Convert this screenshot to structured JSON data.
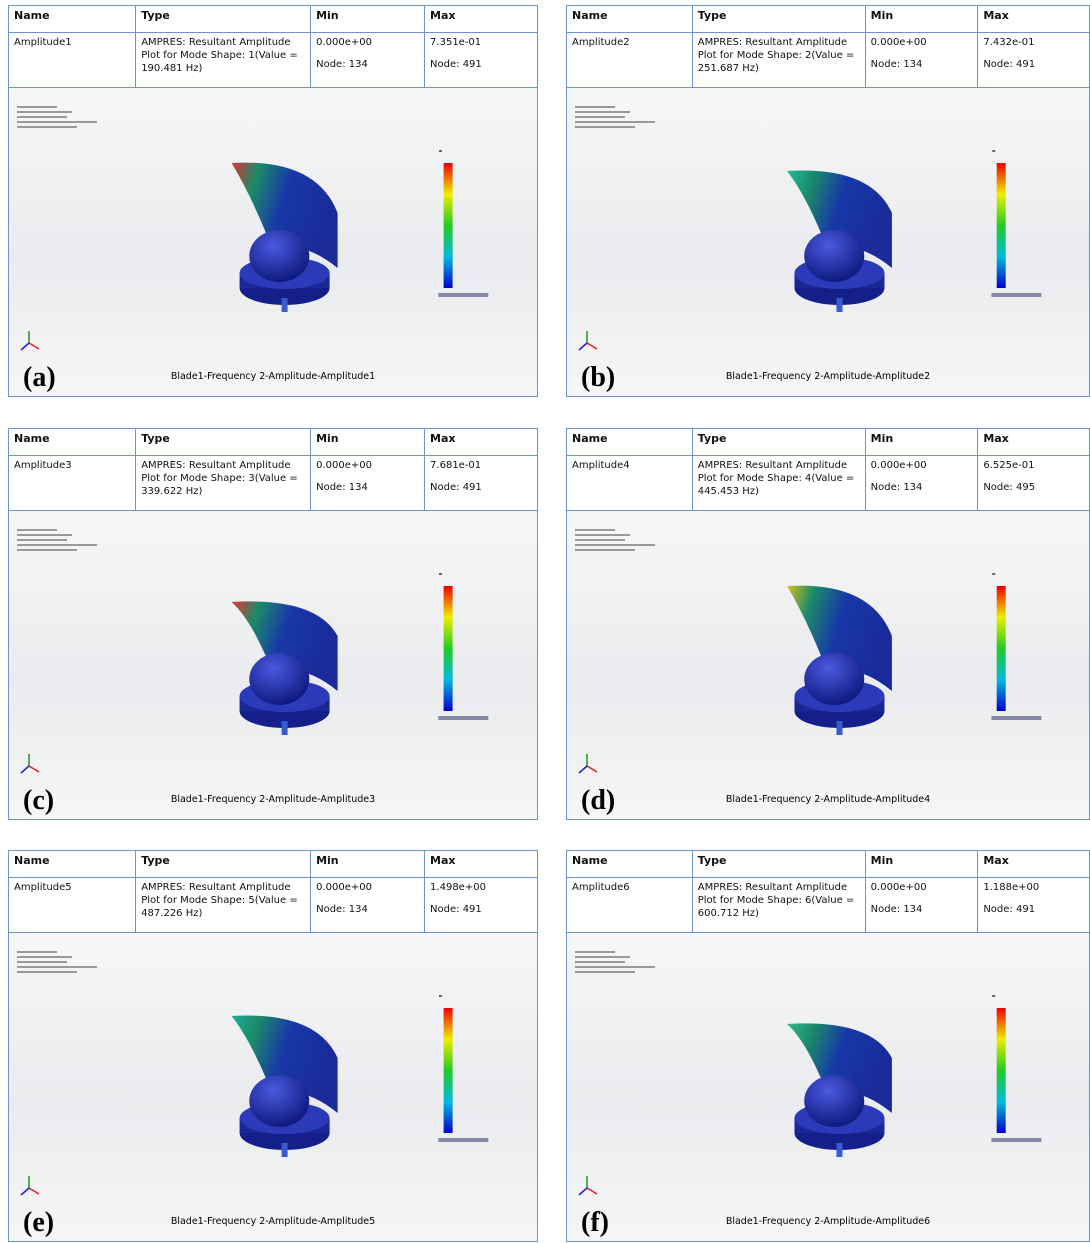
{
  "header": [
    "Name",
    "Type",
    "Min",
    "Max"
  ],
  "panels": [
    {
      "label": "(a)",
      "name": "Amplitude1",
      "type": "AMPRES: Resultant Amplitude Plot for Mode Shape: 1(Value = 190.481 Hz)",
      "min": "0.000e+00",
      "min_node": "Node: 134",
      "max": "7.351e-01",
      "max_node": "Node: 491",
      "caption": "Blade1-Frequency 2-Amplitude-Amplitude1"
    },
    {
      "label": "(b)",
      "name": "Amplitude2",
      "type": "AMPRES: Resultant Amplitude Plot for Mode Shape: 2(Value = 251.687 Hz)",
      "min": "0.000e+00",
      "min_node": "Node: 134",
      "max": "7.432e-01",
      "max_node": "Node: 491",
      "caption": "Blade1-Frequency 2-Amplitude-Amplitude2"
    },
    {
      "label": "(c)",
      "name": "Amplitude3",
      "type": "AMPRES: Resultant Amplitude Plot for Mode Shape: 3(Value = 339.622 Hz)",
      "min": "0.000e+00",
      "min_node": "Node: 134",
      "max": "7.681e-01",
      "max_node": "Node: 491",
      "caption": "Blade1-Frequency 2-Amplitude-Amplitude3"
    },
    {
      "label": "(d)",
      "name": "Amplitude4",
      "type": "AMPRES: Resultant Amplitude Plot for Mode Shape: 4(Value = 445.453 Hz)",
      "min": "0.000e+00",
      "min_node": "Node: 134",
      "max": "6.525e-01",
      "max_node": "Node: 495",
      "caption": "Blade1-Frequency 2-Amplitude-Amplitude4"
    },
    {
      "label": "(e)",
      "name": "Amplitude5",
      "type": "AMPRES: Resultant Amplitude Plot for Mode Shape: 5(Value = 487.226 Hz)",
      "min": "0.000e+00",
      "min_node": "Node: 134",
      "max": "1.498e+00",
      "max_node": "Node: 491",
      "caption": "Blade1-Frequency 2-Amplitude-Amplitude5"
    },
    {
      "label": "(f)",
      "name": "Amplitude6",
      "type": "AMPRES: Resultant Amplitude Plot for Mode Shape: 6(Value = 600.712 Hz)",
      "min": "0.000e+00",
      "min_node": "Node: 134",
      "max": "1.188e+00",
      "max_node": "Node: 491",
      "caption": "Blade1-Frequency 2-Amplitude-Amplitude6"
    }
  ]
}
